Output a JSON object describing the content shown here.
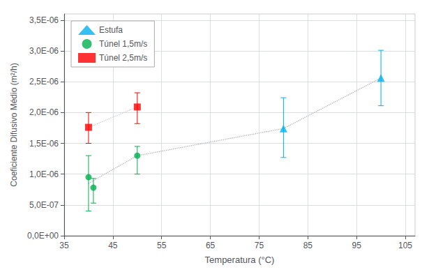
{
  "chart_data": {
    "type": "scatter",
    "xlabel": "Temperatura (°C)",
    "ylabel": "Coeficiente Difusivo Médio (m²/h)",
    "xlim": [
      35,
      107
    ],
    "ylim": [
      0,
      3.6e-06
    ],
    "xticks": [
      35,
      45,
      55,
      65,
      75,
      85,
      95,
      105
    ],
    "yticks": [
      {
        "value": 0,
        "label": "0,0E+00"
      },
      {
        "value": 5e-07,
        "label": "5,0E-07"
      },
      {
        "value": 1e-06,
        "label": "1,0E-06"
      },
      {
        "value": 1.5e-06,
        "label": "1,5E-06"
      },
      {
        "value": 2e-06,
        "label": "2,0E-06"
      },
      {
        "value": 2.5e-06,
        "label": "2,5E-06"
      },
      {
        "value": 3e-06,
        "label": "3,0E-06"
      },
      {
        "value": 3.5e-06,
        "label": "3,5E-06"
      }
    ],
    "grid": true,
    "legend": "upper left",
    "series": [
      {
        "type": "line",
        "line_style": "dotted",
        "color": "#b0b0b0",
        "x": [
          40,
          50,
          80,
          100
        ],
        "values": [
          8.5e-07,
          1.3e-06,
          1.74e-06,
          2.56e-06
        ]
      },
      {
        "type": "line",
        "line_style": "dotted",
        "color": "#c8c8c8",
        "x": [
          40,
          50
        ],
        "values": [
          1.76e-06,
          2.09e-06
        ]
      },
      {
        "type": "scatter",
        "name": "Estufa",
        "color": "#00b0f0",
        "marker": "triangle",
        "x": [
          80,
          100
        ],
        "values": [
          1.74e-06,
          2.56e-06
        ],
        "yerr_low": [
          4.7e-07,
          4.5e-07
        ],
        "yerr_high": [
          5e-07,
          4.5e-07
        ]
      },
      {
        "type": "scatter",
        "name": "Túnel 1,5m/s",
        "color": "#00b050",
        "marker": "circle",
        "x": [
          40,
          41,
          50
        ],
        "values": [
          9.5e-07,
          7.8e-07,
          1.3e-06
        ],
        "yerr_low": [
          5.5e-07,
          2.5e-07,
          3e-07
        ],
        "yerr_high": [
          3.5e-07,
          1.5e-07,
          1.5e-07
        ]
      },
      {
        "type": "scatter",
        "name": "Túnel 2,5m/s",
        "color": "#ff0000",
        "marker": "square",
        "x": [
          40,
          50
        ],
        "values": [
          1.76e-06,
          2.09e-06
        ],
        "yerr_low": [
          2.6e-07,
          2.7e-07
        ],
        "yerr_high": [
          2.4e-07,
          2.3e-07
        ]
      }
    ]
  }
}
